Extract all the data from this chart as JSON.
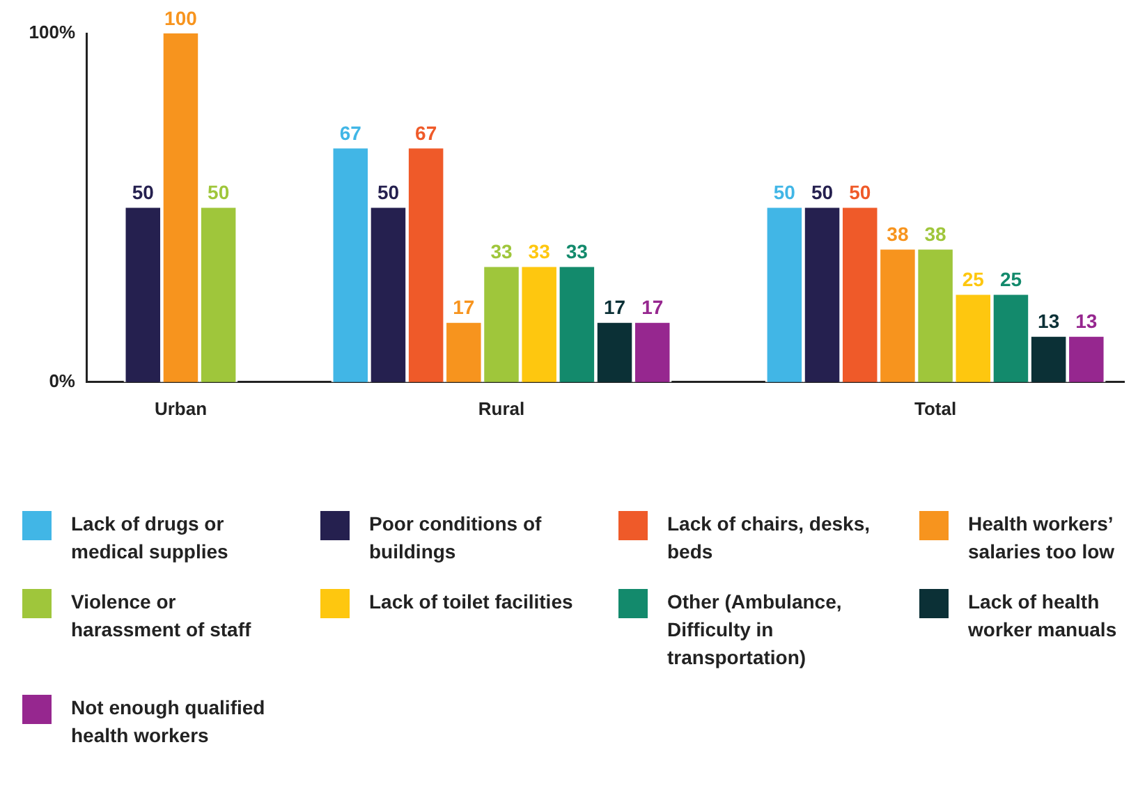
{
  "chart_data": {
    "type": "bar",
    "categories": [
      "Urban",
      "Rural",
      "Total"
    ],
    "series": [
      {
        "name": "Lack of drugs or medical supplies",
        "color": "#41b6e6",
        "values": [
          null,
          67,
          50
        ]
      },
      {
        "name": "Poor conditions of buildings",
        "color": "#25204f",
        "values": [
          50,
          50,
          50
        ]
      },
      {
        "name": "Lack of chairs, desks, beds",
        "color": "#ef5a29",
        "values": [
          null,
          67,
          50
        ]
      },
      {
        "name": "Health workers’ salaries too low",
        "color": "#f7941e",
        "values": [
          100,
          17,
          38
        ]
      },
      {
        "name": "Violence or harassment of staff",
        "color": "#9fc63b",
        "values": [
          50,
          33,
          38
        ]
      },
      {
        "name": "Lack of toilet facilities",
        "color": "#fec70f",
        "values": [
          null,
          33,
          25
        ]
      },
      {
        "name": "Other (Ambulance, Difficulty in transportation)",
        "color": "#138a6c",
        "values": [
          null,
          33,
          25
        ]
      },
      {
        "name": "Lack of health worker manuals",
        "color": "#0b3036",
        "values": [
          null,
          17,
          13
        ]
      },
      {
        "name": "Not enough qualified health workers",
        "color": "#96278f",
        "values": [
          null,
          17,
          13
        ]
      }
    ],
    "ylim": [
      0,
      100
    ],
    "yticks": [
      {
        "value": 0,
        "label": "0%"
      },
      {
        "value": 100,
        "label": "100%"
      }
    ],
    "grid": false,
    "legend": "bottom",
    "data_labels": true
  }
}
